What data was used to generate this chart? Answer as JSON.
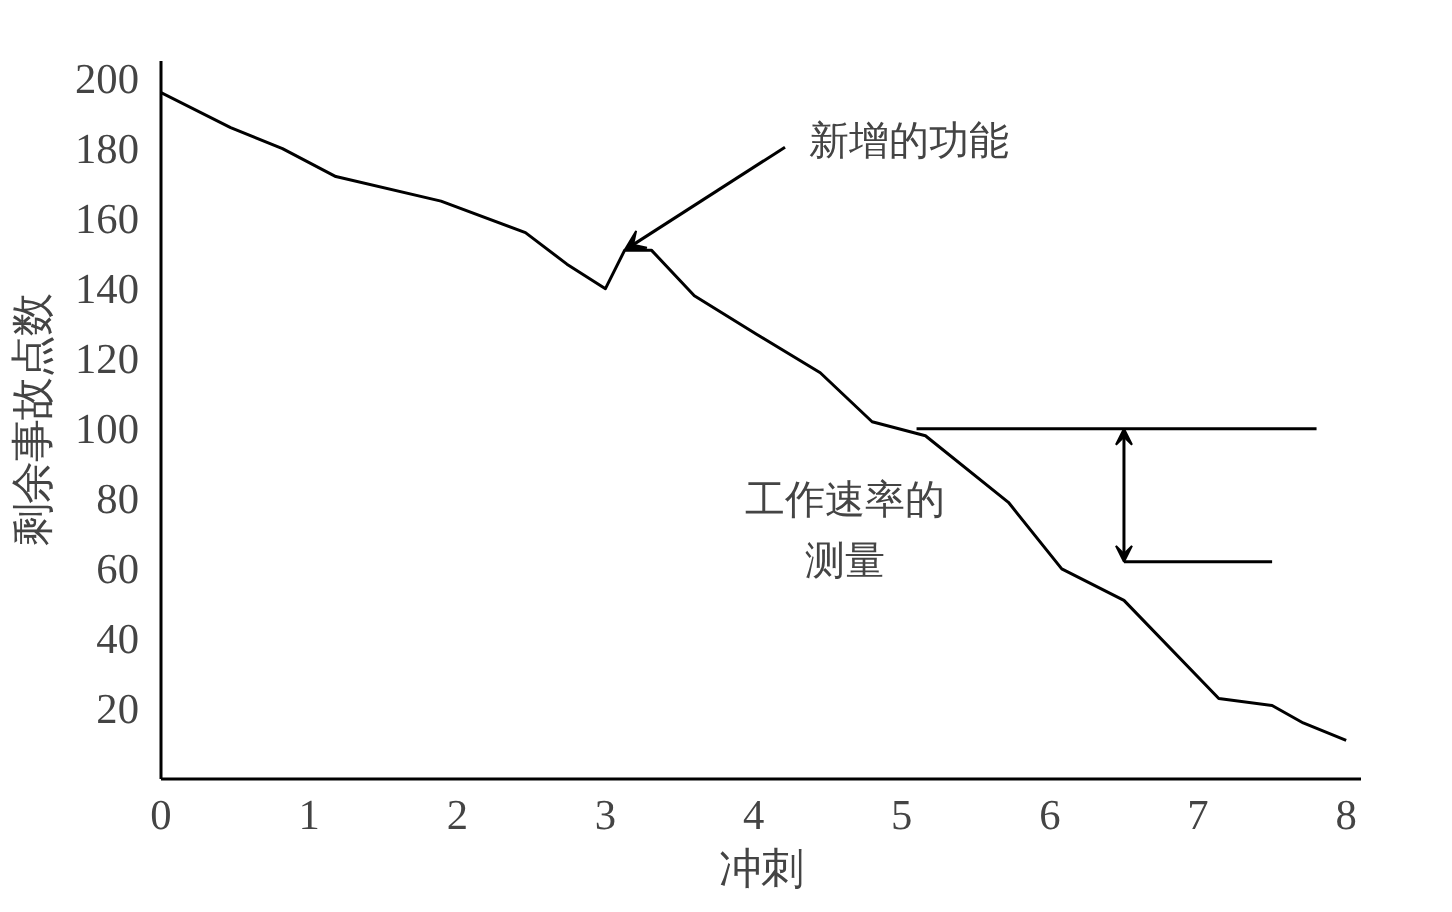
{
  "chart_data": {
    "type": "line",
    "xlabel": "冲刺",
    "ylabel": "剩余事故点数",
    "xlim": [
      0,
      8.1
    ],
    "ylim": [
      0,
      205
    ],
    "xticks": [
      0,
      1,
      2,
      3,
      4,
      5,
      6,
      7,
      8
    ],
    "yticks": [
      20,
      40,
      60,
      80,
      100,
      120,
      140,
      160,
      180,
      200
    ],
    "grid": false,
    "marker": "none",
    "line_style": "solid",
    "series": [
      {
        "color": "#000000",
        "x": [
          0,
          0.47,
          0.82,
          1.18,
          1.89,
          2.46,
          2.74,
          3.0,
          3.13,
          3.31,
          3.6,
          4.02,
          4.45,
          4.8,
          5.16,
          5.72,
          6.08,
          6.5,
          7.14,
          7.5,
          7.71,
          8
        ],
        "values": [
          196,
          186,
          180,
          172,
          165,
          156,
          147,
          140,
          151,
          151,
          138,
          127,
          116,
          102,
          98,
          79,
          60,
          51,
          23,
          21,
          16,
          11
        ]
      },
      {
        "color": "#000000",
        "x": [
          5.1,
          7.8
        ],
        "values": [
          100,
          100
        ]
      },
      {
        "color": "#000000",
        "x": [
          6.5,
          7.5
        ],
        "values": [
          62,
          62
        ]
      }
    ],
    "annotations": [
      {
        "text": "新增的功能",
        "x": 3.13,
        "y": 151
      },
      "工作速率的",
      "测量"
    ]
  }
}
